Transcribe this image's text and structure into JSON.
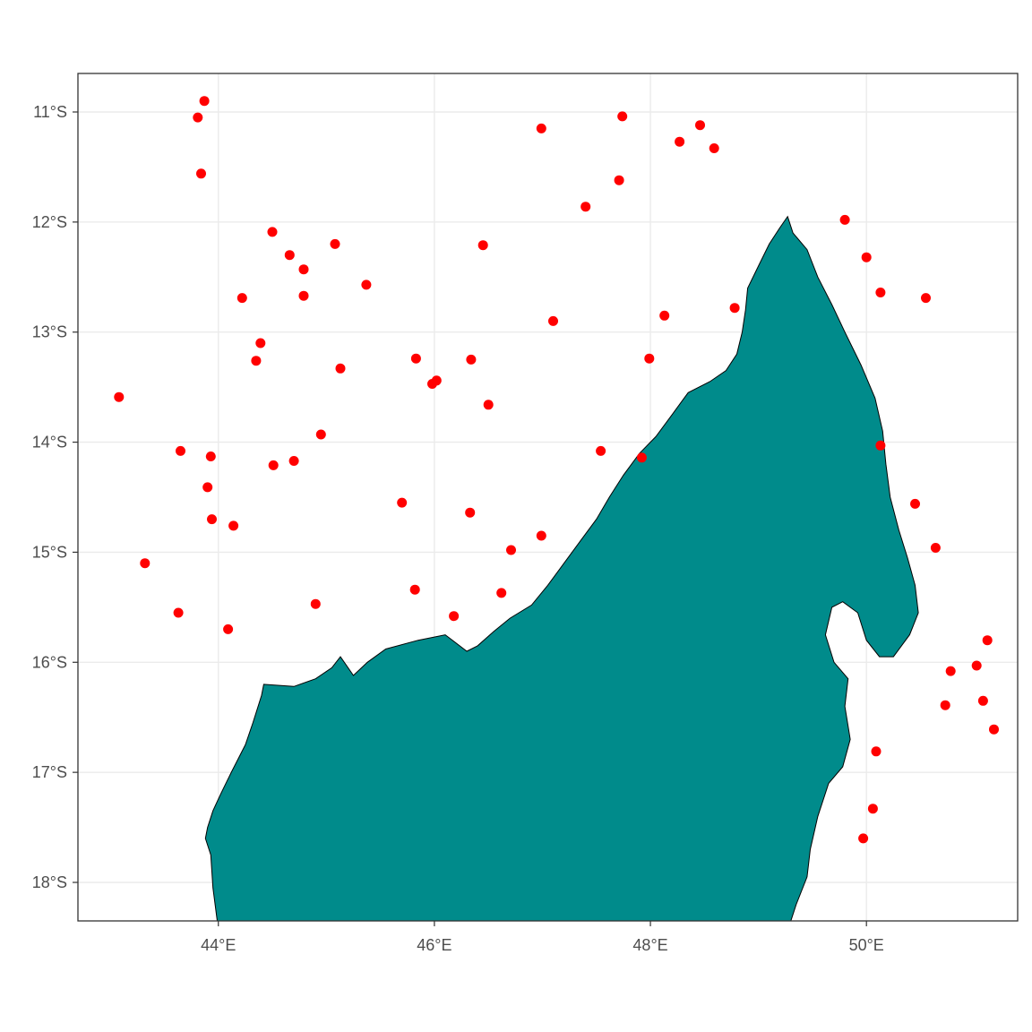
{
  "map": {
    "x_axis": {
      "range": [
        42.7,
        51.4
      ],
      "ticks": [
        {
          "value": 44,
          "label": "44°E"
        },
        {
          "value": 46,
          "label": "46°E"
        },
        {
          "value": 48,
          "label": "48°E"
        },
        {
          "value": 50,
          "label": "50°E"
        }
      ]
    },
    "y_axis": {
      "range": [
        -18.35,
        -10.65
      ],
      "ticks": [
        {
          "value": -11,
          "label": "11°S"
        },
        {
          "value": -12,
          "label": "12°S"
        },
        {
          "value": -13,
          "label": "13°S"
        },
        {
          "value": -14,
          "label": "14°S"
        },
        {
          "value": -15,
          "label": "15°S"
        },
        {
          "value": -16,
          "label": "16°S"
        },
        {
          "value": -17,
          "label": "17°S"
        },
        {
          "value": -18,
          "label": "18°S"
        }
      ]
    },
    "grid": true,
    "colors": {
      "land": "#008B8B",
      "land_outline": "#000000",
      "points": "#FF0000",
      "grid": "#EBEBEB",
      "panel_border": "#333333"
    },
    "coastline_lonlat": [
      [
        43.99,
        -18.35
      ],
      [
        43.95,
        -18.05
      ],
      [
        43.93,
        -17.75
      ],
      [
        43.88,
        -17.6
      ],
      [
        43.9,
        -17.5
      ],
      [
        43.95,
        -17.35
      ],
      [
        44.02,
        -17.2
      ],
      [
        44.12,
        -17.0
      ],
      [
        44.25,
        -16.75
      ],
      [
        44.32,
        -16.55
      ],
      [
        44.4,
        -16.3
      ],
      [
        44.42,
        -16.2
      ],
      [
        44.7,
        -16.22
      ],
      [
        44.9,
        -16.15
      ],
      [
        45.05,
        -16.05
      ],
      [
        45.13,
        -15.95
      ],
      [
        45.25,
        -16.12
      ],
      [
        45.38,
        -16.0
      ],
      [
        45.55,
        -15.88
      ],
      [
        45.85,
        -15.8
      ],
      [
        46.1,
        -15.75
      ],
      [
        46.3,
        -15.9
      ],
      [
        46.4,
        -15.85
      ],
      [
        46.55,
        -15.72
      ],
      [
        46.7,
        -15.6
      ],
      [
        46.9,
        -15.48
      ],
      [
        47.05,
        -15.3
      ],
      [
        47.2,
        -15.1
      ],
      [
        47.35,
        -14.9
      ],
      [
        47.5,
        -14.7
      ],
      [
        47.62,
        -14.5
      ],
      [
        47.75,
        -14.3
      ],
      [
        47.9,
        -14.1
      ],
      [
        48.05,
        -13.95
      ],
      [
        48.2,
        -13.75
      ],
      [
        48.35,
        -13.55
      ],
      [
        48.55,
        -13.45
      ],
      [
        48.7,
        -13.35
      ],
      [
        48.8,
        -13.2
      ],
      [
        48.85,
        -13.0
      ],
      [
        48.88,
        -12.8
      ],
      [
        48.9,
        -12.6
      ],
      [
        49.0,
        -12.4
      ],
      [
        49.1,
        -12.2
      ],
      [
        49.2,
        -12.05
      ],
      [
        49.27,
        -11.95
      ],
      [
        49.32,
        -12.1
      ],
      [
        49.45,
        -12.25
      ],
      [
        49.55,
        -12.5
      ],
      [
        49.68,
        -12.75
      ],
      [
        49.8,
        -13.0
      ],
      [
        49.95,
        -13.3
      ],
      [
        50.08,
        -13.6
      ],
      [
        50.15,
        -13.9
      ],
      [
        50.18,
        -14.2
      ],
      [
        50.22,
        -14.5
      ],
      [
        50.3,
        -14.8
      ],
      [
        50.38,
        -15.05
      ],
      [
        50.45,
        -15.3
      ],
      [
        50.48,
        -15.55
      ],
      [
        50.4,
        -15.75
      ],
      [
        50.25,
        -15.95
      ],
      [
        50.12,
        -15.95
      ],
      [
        50.0,
        -15.8
      ],
      [
        49.92,
        -15.55
      ],
      [
        49.78,
        -15.45
      ],
      [
        49.68,
        -15.5
      ],
      [
        49.62,
        -15.75
      ],
      [
        49.7,
        -16.0
      ],
      [
        49.83,
        -16.15
      ],
      [
        49.8,
        -16.4
      ],
      [
        49.85,
        -16.7
      ],
      [
        49.78,
        -16.95
      ],
      [
        49.65,
        -17.1
      ],
      [
        49.55,
        -17.4
      ],
      [
        49.48,
        -17.7
      ],
      [
        49.45,
        -17.95
      ],
      [
        49.35,
        -18.2
      ],
      [
        49.3,
        -18.35
      ]
    ],
    "points": [
      [
        43.87,
        -10.9
      ],
      [
        43.81,
        -11.05
      ],
      [
        43.84,
        -11.56
      ],
      [
        43.08,
        -13.59
      ],
      [
        43.32,
        -15.1
      ],
      [
        43.63,
        -15.55
      ],
      [
        43.65,
        -14.08
      ],
      [
        43.9,
        -14.41
      ],
      [
        43.93,
        -14.13
      ],
      [
        43.94,
        -14.7
      ],
      [
        44.09,
        -15.7
      ],
      [
        44.14,
        -14.76
      ],
      [
        44.22,
        -12.69
      ],
      [
        44.35,
        -13.26
      ],
      [
        44.39,
        -13.1
      ],
      [
        44.5,
        -12.09
      ],
      [
        44.51,
        -14.21
      ],
      [
        44.66,
        -12.3
      ],
      [
        44.7,
        -14.17
      ],
      [
        44.79,
        -12.43
      ],
      [
        44.79,
        -12.67
      ],
      [
        44.9,
        -15.47
      ],
      [
        44.95,
        -13.93
      ],
      [
        45.08,
        -12.2
      ],
      [
        45.13,
        -13.33
      ],
      [
        45.37,
        -12.57
      ],
      [
        45.7,
        -14.55
      ],
      [
        45.82,
        -15.34
      ],
      [
        45.83,
        -13.24
      ],
      [
        45.98,
        -13.47
      ],
      [
        46.02,
        -13.44
      ],
      [
        46.18,
        -15.58
      ],
      [
        46.33,
        -14.64
      ],
      [
        46.34,
        -13.25
      ],
      [
        46.45,
        -12.21
      ],
      [
        46.5,
        -13.66
      ],
      [
        46.62,
        -15.37
      ],
      [
        46.71,
        -14.98
      ],
      [
        46.99,
        -11.15
      ],
      [
        46.99,
        -14.85
      ],
      [
        47.1,
        -12.9
      ],
      [
        47.4,
        -11.86
      ],
      [
        47.54,
        -14.08
      ],
      [
        47.71,
        -11.62
      ],
      [
        47.74,
        -11.04
      ],
      [
        47.92,
        -14.14
      ],
      [
        47.99,
        -13.24
      ],
      [
        48.13,
        -12.85
      ],
      [
        48.27,
        -11.27
      ],
      [
        48.46,
        -11.12
      ],
      [
        48.59,
        -11.33
      ],
      [
        48.78,
        -12.78
      ],
      [
        49.8,
        -11.98
      ],
      [
        49.97,
        -17.6
      ],
      [
        50.0,
        -12.32
      ],
      [
        50.06,
        -17.33
      ],
      [
        50.09,
        -16.81
      ],
      [
        50.13,
        -12.64
      ],
      [
        50.13,
        -14.03
      ],
      [
        50.45,
        -14.56
      ],
      [
        50.55,
        -12.69
      ],
      [
        50.64,
        -14.96
      ],
      [
        50.73,
        -16.39
      ],
      [
        50.78,
        -16.08
      ],
      [
        51.02,
        -16.03
      ],
      [
        51.08,
        -16.35
      ],
      [
        51.12,
        -15.8
      ],
      [
        51.18,
        -16.61
      ]
    ]
  }
}
